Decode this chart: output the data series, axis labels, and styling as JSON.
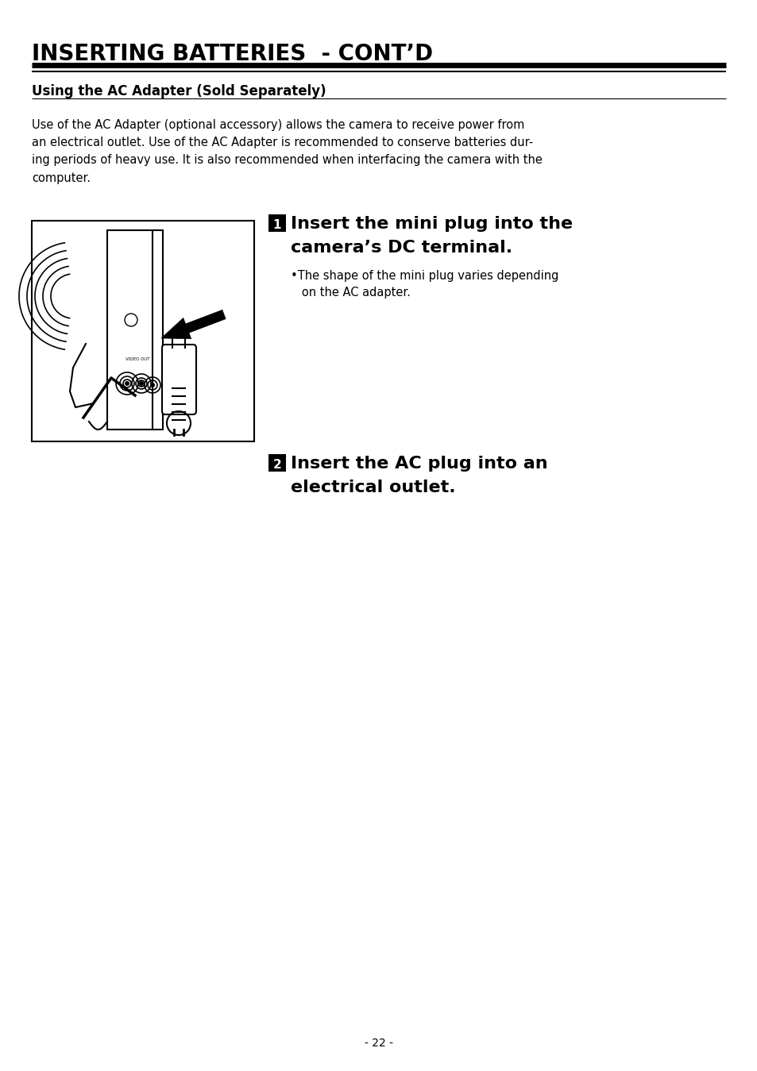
{
  "bg_color": "#ffffff",
  "title": "INSERTING BATTERIES  - CONT’D",
  "title_fontsize": 20,
  "section_heading": "Using the AC Adapter (Sold Separately)",
  "section_heading_fontsize": 12,
  "body_text": "Use of the AC Adapter (optional accessory) allows the camera to receive power from\nan electrical outlet. Use of the AC Adapter is recommended to conserve batteries dur-\ning periods of heavy use. It is also recommended when interfacing the camera with the\ncomputer.",
  "body_fontsize": 10.5,
  "step1_main_line1": "Insert the mini plug into the",
  "step1_main_line2": "camera’s DC terminal.",
  "step1_main_fontsize": 16,
  "step1_bullet": "•The shape of the mini plug varies depending\n   on the AC adapter.",
  "step1_bullet_fontsize": 10.5,
  "step2_main_line1": "Insert the AC plug into an",
  "step2_main_line2": "electrical outlet.",
  "step2_main_fontsize": 16,
  "page_number": "- 22 -",
  "page_fontsize": 10
}
